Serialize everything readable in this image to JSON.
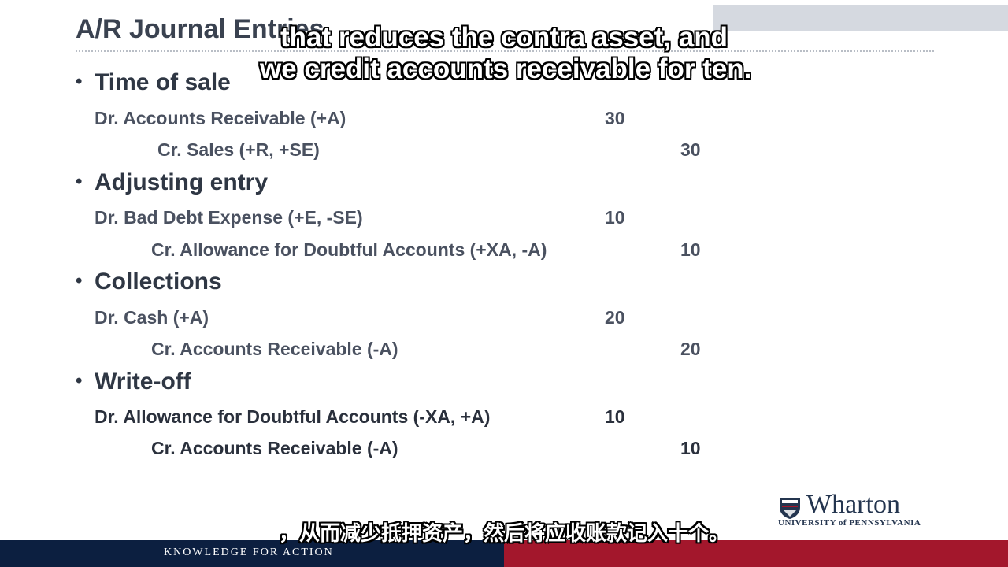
{
  "slide": {
    "title": "A/R Journal Entries",
    "sections": [
      {
        "heading": "Time of sale",
        "entries": [
          {
            "account": "Dr. Accounts Receivable (+A)",
            "amount": "30"
          },
          {
            "account": "Cr. Sales (+R, +SE)",
            "amount": "30"
          }
        ]
      },
      {
        "heading": "Adjusting entry",
        "entries": [
          {
            "account": "Dr. Bad Debt Expense (+E, -SE)",
            "amount": "10"
          },
          {
            "account": "Cr. Allowance for Doubtful Accounts (+XA, -A)",
            "amount": "10"
          }
        ]
      },
      {
        "heading": "Collections",
        "entries": [
          {
            "account": "Dr. Cash (+A)",
            "amount": "20"
          },
          {
            "account": "Cr. Accounts Receivable (-A)",
            "amount": "20"
          }
        ]
      },
      {
        "heading": "Write-off",
        "entries": [
          {
            "account": "Dr. Allowance for Doubtful Accounts (-XA, +A)",
            "amount": "10"
          },
          {
            "account": "Cr. Accounts Receivable (-A)",
            "amount": "10"
          }
        ]
      }
    ]
  },
  "captions": {
    "english_line1": "that reduces the contra asset, and",
    "english_line2": "we credit accounts receivable for ten.",
    "chinese": "，从而减少抵押资产，然后将应收账款记入十个。"
  },
  "branding": {
    "logo_word": "Wharton",
    "logo_subtitle": "UNIVERSITY of PENNSYLVANIA",
    "tagline": "KNOWLEDGE FOR ACTION",
    "colors": {
      "navy": "#0c1f40",
      "red": "#a3172c",
      "logo": "#24354f"
    }
  }
}
